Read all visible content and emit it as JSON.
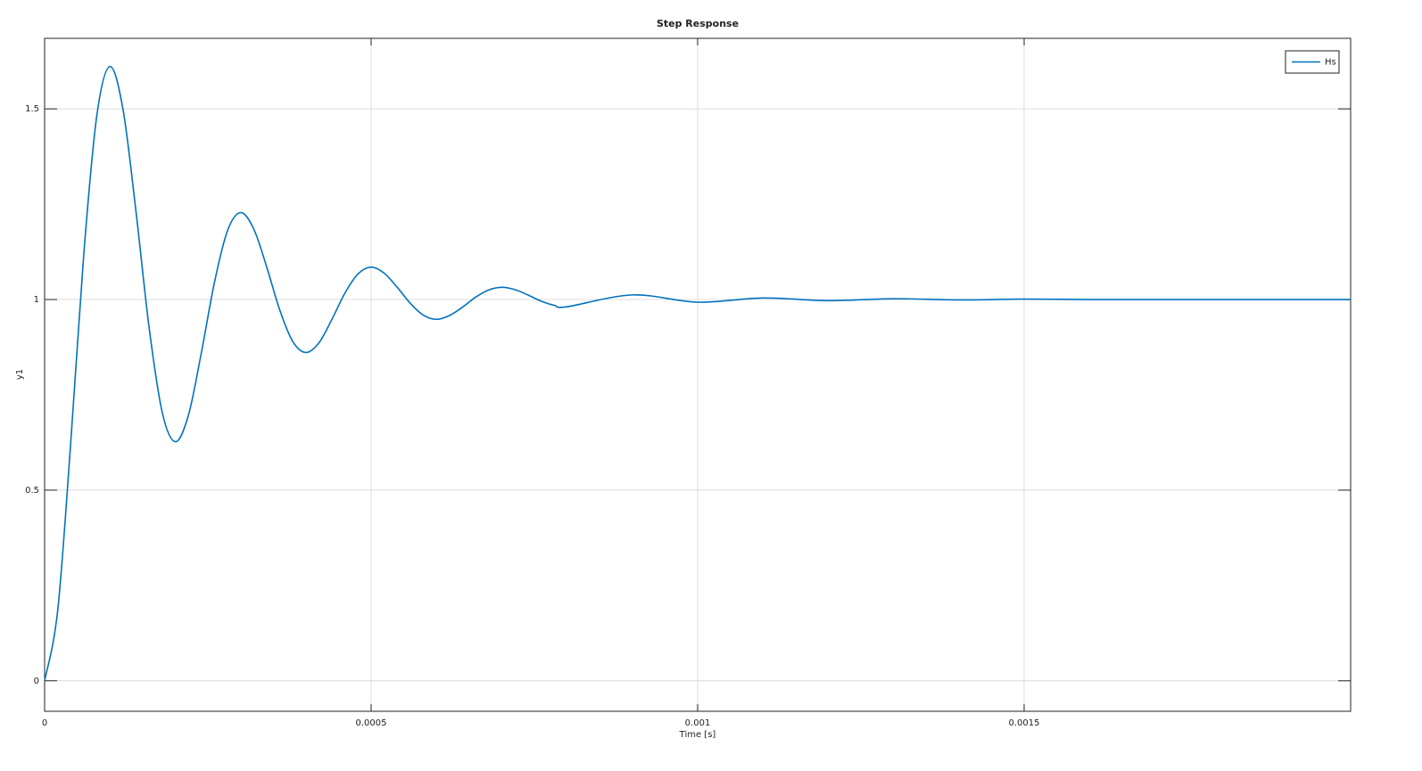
{
  "chart_data": {
    "type": "line",
    "title": "Step Response",
    "xlabel": "Time [s]",
    "ylabel": "y1",
    "x": [
      0,
      2e-05,
      4e-05,
      6e-05,
      8e-05,
      0.0001,
      0.00012,
      0.00014,
      0.00016,
      0.00018,
      0.0002,
      0.00022,
      0.00024,
      0.00026,
      0.00028,
      0.0003,
      0.00032,
      0.00034,
      0.00036,
      0.00038,
      0.0004,
      0.00042,
      0.00044,
      0.00046,
      0.00048,
      0.0005,
      0.00052,
      0.00054,
      0.00056,
      0.00058,
      0.0006,
      0.00062,
      0.00064,
      0.00066,
      0.00068,
      0.0007,
      0.00072,
      0.00074,
      0.00076,
      0.00078,
      0.0008,
      0.0009,
      0.001,
      0.0011,
      0.0012,
      0.0013,
      0.0014,
      0.0015,
      0.0016,
      0.0017,
      0.0018,
      0.0019,
      0.002
    ],
    "series": [
      {
        "name": "Hs",
        "color": "#0072bd",
        "values": [
          0,
          0.184,
          0.624,
          1.119,
          1.483,
          1.611,
          1.499,
          1.23,
          0.927,
          0.705,
          0.627,
          0.695,
          0.86,
          1.044,
          1.18,
          1.228,
          1.186,
          1.086,
          0.973,
          0.89,
          0.861,
          0.886,
          0.948,
          1.017,
          1.067,
          1.085,
          1.069,
          1.032,
          0.99,
          0.959,
          0.948,
          0.958,
          0.98,
          1.006,
          1.025,
          1.032,
          1.026,
          1.012,
          0.996,
          0.985,
          0.981,
          1.012,
          0.993,
          1.004,
          0.997,
          1.002,
          0.999,
          1.001,
          1,
          1,
          1,
          1,
          1
        ]
      }
    ],
    "xlim": [
      0,
      0.002
    ],
    "ylim": [
      -0.08,
      1.685
    ],
    "xticks": [
      0,
      0.0005,
      0.001,
      0.0015
    ],
    "yticks": [
      0,
      0.5,
      1,
      1.5
    ],
    "grid": true,
    "legend": "upper right"
  }
}
